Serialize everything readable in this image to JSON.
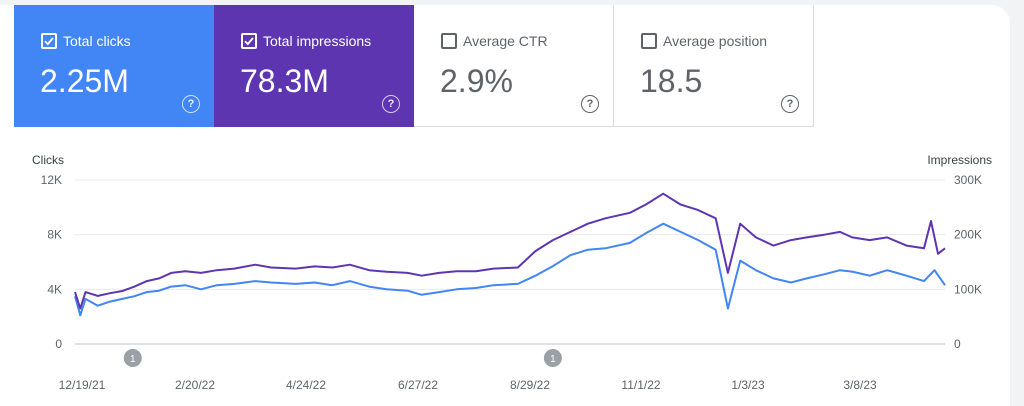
{
  "cards": [
    {
      "key": "clicks",
      "label": "Total clicks",
      "value": "2.25M",
      "checked": true
    },
    {
      "key": "impr",
      "label": "Total impressions",
      "value": "78.3M",
      "checked": true
    },
    {
      "key": "ctr",
      "label": "Average CTR",
      "value": "2.9%",
      "checked": false
    },
    {
      "key": "pos",
      "label": "Average position",
      "value": "18.5",
      "checked": false
    }
  ],
  "help_glyph": "?",
  "chart_data": {
    "type": "line",
    "left_axis": {
      "label": "Clicks",
      "ticks": [
        "0",
        "4K",
        "8K",
        "12K"
      ],
      "range": [
        0,
        12000
      ]
    },
    "right_axis": {
      "label": "Impressions",
      "ticks": [
        "0",
        "100K",
        "200K",
        "300K"
      ],
      "range": [
        0,
        300000
      ]
    },
    "x_ticks": [
      "12/19/21",
      "2/20/22",
      "4/24/22",
      "6/27/22",
      "8/29/22",
      "11/1/22",
      "1/3/23",
      "3/8/23"
    ],
    "x_range": [
      "2021-12-19",
      "2023-04-30"
    ],
    "grid": true,
    "annotations": [
      {
        "date": "2022-01-21",
        "label": "1"
      },
      {
        "date": "2022-09-18",
        "label": "1"
      }
    ],
    "series": [
      {
        "name": "Total clicks",
        "axis": "left",
        "color": "#4285f4",
        "points": [
          [
            "2021-12-19",
            3500
          ],
          [
            "2021-12-22",
            2100
          ],
          [
            "2021-12-25",
            3300
          ],
          [
            "2022-01-01",
            2800
          ],
          [
            "2022-01-08",
            3100
          ],
          [
            "2022-01-15",
            3300
          ],
          [
            "2022-01-22",
            3500
          ],
          [
            "2022-01-29",
            3800
          ],
          [
            "2022-02-05",
            3900
          ],
          [
            "2022-02-12",
            4200
          ],
          [
            "2022-02-20",
            4300
          ],
          [
            "2022-03-01",
            4000
          ],
          [
            "2022-03-10",
            4300
          ],
          [
            "2022-03-20",
            4400
          ],
          [
            "2022-04-01",
            4600
          ],
          [
            "2022-04-10",
            4500
          ],
          [
            "2022-04-24",
            4400
          ],
          [
            "2022-05-05",
            4500
          ],
          [
            "2022-05-15",
            4300
          ],
          [
            "2022-05-25",
            4600
          ],
          [
            "2022-06-05",
            4200
          ],
          [
            "2022-06-15",
            4000
          ],
          [
            "2022-06-27",
            3900
          ],
          [
            "2022-07-05",
            3600
          ],
          [
            "2022-07-15",
            3800
          ],
          [
            "2022-07-25",
            4000
          ],
          [
            "2022-08-05",
            4100
          ],
          [
            "2022-08-15",
            4300
          ],
          [
            "2022-08-29",
            4400
          ],
          [
            "2022-09-08",
            5000
          ],
          [
            "2022-09-18",
            5700
          ],
          [
            "2022-09-28",
            6500
          ],
          [
            "2022-10-08",
            6900
          ],
          [
            "2022-10-18",
            7000
          ],
          [
            "2022-11-01",
            7400
          ],
          [
            "2022-11-10",
            8100
          ],
          [
            "2022-11-20",
            8800
          ],
          [
            "2022-11-30",
            8200
          ],
          [
            "2022-12-10",
            7600
          ],
          [
            "2022-12-20",
            6900
          ],
          [
            "2022-12-27",
            2600
          ],
          [
            "2023-01-03",
            6100
          ],
          [
            "2023-01-12",
            5400
          ],
          [
            "2023-01-22",
            4800
          ],
          [
            "2023-02-01",
            4500
          ],
          [
            "2023-02-10",
            4800
          ],
          [
            "2023-02-20",
            5100
          ],
          [
            "2023-03-01",
            5400
          ],
          [
            "2023-03-08",
            5300
          ],
          [
            "2023-03-18",
            5000
          ],
          [
            "2023-03-28",
            5400
          ],
          [
            "2023-04-08",
            5000
          ],
          [
            "2023-04-18",
            4600
          ],
          [
            "2023-04-24",
            5400
          ],
          [
            "2023-04-30",
            4300
          ]
        ]
      },
      {
        "name": "Total impressions",
        "axis": "right",
        "color": "#5e35b1",
        "points": [
          [
            "2021-12-19",
            95000
          ],
          [
            "2021-12-22",
            65000
          ],
          [
            "2021-12-25",
            95000
          ],
          [
            "2022-01-01",
            88000
          ],
          [
            "2022-01-08",
            93000
          ],
          [
            "2022-01-15",
            97000
          ],
          [
            "2022-01-22",
            105000
          ],
          [
            "2022-01-29",
            115000
          ],
          [
            "2022-02-05",
            120000
          ],
          [
            "2022-02-12",
            130000
          ],
          [
            "2022-02-20",
            133000
          ],
          [
            "2022-03-01",
            130000
          ],
          [
            "2022-03-10",
            135000
          ],
          [
            "2022-03-20",
            138000
          ],
          [
            "2022-04-01",
            145000
          ],
          [
            "2022-04-10",
            140000
          ],
          [
            "2022-04-24",
            138000
          ],
          [
            "2022-05-05",
            142000
          ],
          [
            "2022-05-15",
            140000
          ],
          [
            "2022-05-25",
            145000
          ],
          [
            "2022-06-05",
            135000
          ],
          [
            "2022-06-15",
            132000
          ],
          [
            "2022-06-27",
            130000
          ],
          [
            "2022-07-05",
            125000
          ],
          [
            "2022-07-15",
            130000
          ],
          [
            "2022-07-25",
            133000
          ],
          [
            "2022-08-05",
            133000
          ],
          [
            "2022-08-15",
            138000
          ],
          [
            "2022-08-29",
            140000
          ],
          [
            "2022-09-08",
            170000
          ],
          [
            "2022-09-18",
            190000
          ],
          [
            "2022-09-28",
            205000
          ],
          [
            "2022-10-08",
            220000
          ],
          [
            "2022-10-18",
            230000
          ],
          [
            "2022-11-01",
            240000
          ],
          [
            "2022-11-10",
            255000
          ],
          [
            "2022-11-20",
            275000
          ],
          [
            "2022-11-30",
            255000
          ],
          [
            "2022-12-10",
            245000
          ],
          [
            "2022-12-20",
            230000
          ],
          [
            "2022-12-27",
            130000
          ],
          [
            "2023-01-03",
            220000
          ],
          [
            "2023-01-12",
            195000
          ],
          [
            "2023-01-22",
            180000
          ],
          [
            "2023-02-01",
            190000
          ],
          [
            "2023-02-10",
            195000
          ],
          [
            "2023-02-20",
            200000
          ],
          [
            "2023-03-01",
            205000
          ],
          [
            "2023-03-08",
            195000
          ],
          [
            "2023-03-18",
            190000
          ],
          [
            "2023-03-28",
            195000
          ],
          [
            "2023-04-08",
            180000
          ],
          [
            "2023-04-18",
            175000
          ],
          [
            "2023-04-22",
            225000
          ],
          [
            "2023-04-26",
            165000
          ],
          [
            "2023-04-30",
            175000
          ]
        ]
      }
    ]
  }
}
